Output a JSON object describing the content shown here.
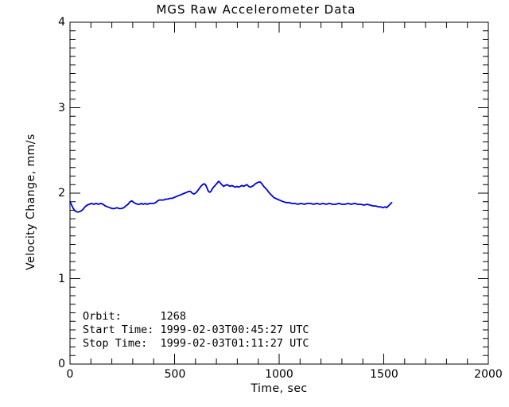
{
  "chart_data": {
    "type": "line",
    "title": "MGS Raw Accelerometer Data",
    "xlabel": "Time, sec",
    "ylabel": "Velocity Change, mm/s",
    "xlim": [
      0,
      2000
    ],
    "ylim": [
      0,
      4
    ],
    "xticks": [
      0,
      500,
      1000,
      1500,
      2000
    ],
    "yticks": [
      0,
      1,
      2,
      3,
      4
    ],
    "xtick_labels": [
      "0",
      "500",
      "1000",
      "1500",
      "2000"
    ],
    "ytick_labels": [
      "0",
      "1",
      "2",
      "3",
      "4"
    ],
    "x_minor_interval": 100,
    "y_minor_interval": 0.1,
    "grid": false,
    "legend": "none",
    "frame_color": "#000000",
    "line_color": "#0000dd",
    "series": [
      {
        "name": "velocity-change",
        "points": [
          [
            0,
            1.9
          ],
          [
            8,
            1.86
          ],
          [
            16,
            1.82
          ],
          [
            25,
            1.79
          ],
          [
            34,
            1.78
          ],
          [
            43,
            1.78
          ],
          [
            52,
            1.79
          ],
          [
            62,
            1.81
          ],
          [
            72,
            1.84
          ],
          [
            82,
            1.86
          ],
          [
            92,
            1.87
          ],
          [
            103,
            1.88
          ],
          [
            114,
            1.87
          ],
          [
            125,
            1.88
          ],
          [
            136,
            1.87
          ],
          [
            147,
            1.88
          ],
          [
            158,
            1.87
          ],
          [
            169,
            1.85
          ],
          [
            180,
            1.84
          ],
          [
            191,
            1.83
          ],
          [
            202,
            1.82
          ],
          [
            213,
            1.82
          ],
          [
            224,
            1.83
          ],
          [
            235,
            1.82
          ],
          [
            246,
            1.82
          ],
          [
            257,
            1.83
          ],
          [
            267,
            1.85
          ],
          [
            277,
            1.87
          ],
          [
            287,
            1.9
          ],
          [
            296,
            1.91
          ],
          [
            305,
            1.89
          ],
          [
            314,
            1.88
          ],
          [
            323,
            1.87
          ],
          [
            332,
            1.87
          ],
          [
            341,
            1.88
          ],
          [
            350,
            1.87
          ],
          [
            360,
            1.88
          ],
          [
            370,
            1.87
          ],
          [
            380,
            1.88
          ],
          [
            390,
            1.88
          ],
          [
            400,
            1.88
          ],
          [
            410,
            1.89
          ],
          [
            419,
            1.91
          ],
          [
            428,
            1.92
          ],
          [
            438,
            1.92
          ],
          [
            448,
            1.92
          ],
          [
            458,
            1.93
          ],
          [
            468,
            1.93
          ],
          [
            478,
            1.94
          ],
          [
            488,
            1.94
          ],
          [
            498,
            1.95
          ],
          [
            508,
            1.96
          ],
          [
            518,
            1.97
          ],
          [
            528,
            1.98
          ],
          [
            538,
            1.99
          ],
          [
            548,
            2.0
          ],
          [
            558,
            2.01
          ],
          [
            567,
            2.02
          ],
          [
            576,
            2.02
          ],
          [
            584,
            2.0
          ],
          [
            592,
            1.99
          ],
          [
            600,
            2.0
          ],
          [
            608,
            2.02
          ],
          [
            617,
            2.05
          ],
          [
            626,
            2.08
          ],
          [
            634,
            2.1
          ],
          [
            641,
            2.11
          ],
          [
            648,
            2.1
          ],
          [
            655,
            2.06
          ],
          [
            662,
            2.02
          ],
          [
            669,
            2.01
          ],
          [
            676,
            2.03
          ],
          [
            683,
            2.06
          ],
          [
            690,
            2.08
          ],
          [
            697,
            2.1
          ],
          [
            704,
            2.12
          ],
          [
            711,
            2.14
          ],
          [
            718,
            2.12
          ],
          [
            726,
            2.1
          ],
          [
            734,
            2.08
          ],
          [
            742,
            2.09
          ],
          [
            750,
            2.1
          ],
          [
            758,
            2.09
          ],
          [
            766,
            2.08
          ],
          [
            774,
            2.09
          ],
          [
            782,
            2.08
          ],
          [
            790,
            2.07
          ],
          [
            798,
            2.08
          ],
          [
            806,
            2.07
          ],
          [
            814,
            2.08
          ],
          [
            822,
            2.09
          ],
          [
            830,
            2.08
          ],
          [
            838,
            2.09
          ],
          [
            846,
            2.1
          ],
          [
            854,
            2.08
          ],
          [
            862,
            2.07
          ],
          [
            870,
            2.08
          ],
          [
            878,
            2.09
          ],
          [
            886,
            2.11
          ],
          [
            894,
            2.12
          ],
          [
            902,
            2.13
          ],
          [
            910,
            2.13
          ],
          [
            918,
            2.11
          ],
          [
            926,
            2.08
          ],
          [
            934,
            2.06
          ],
          [
            942,
            2.04
          ],
          [
            950,
            2.01
          ],
          [
            958,
            1.99
          ],
          [
            966,
            1.97
          ],
          [
            974,
            1.95
          ],
          [
            982,
            1.94
          ],
          [
            991,
            1.93
          ],
          [
            1000,
            1.92
          ],
          [
            1010,
            1.91
          ],
          [
            1021,
            1.9
          ],
          [
            1033,
            1.89
          ],
          [
            1046,
            1.89
          ],
          [
            1060,
            1.88
          ],
          [
            1075,
            1.88
          ],
          [
            1090,
            1.87
          ],
          [
            1105,
            1.88
          ],
          [
            1120,
            1.87
          ],
          [
            1135,
            1.88
          ],
          [
            1150,
            1.88
          ],
          [
            1165,
            1.87
          ],
          [
            1180,
            1.88
          ],
          [
            1195,
            1.87
          ],
          [
            1210,
            1.88
          ],
          [
            1225,
            1.87
          ],
          [
            1240,
            1.88
          ],
          [
            1255,
            1.87
          ],
          [
            1270,
            1.87
          ],
          [
            1285,
            1.88
          ],
          [
            1300,
            1.87
          ],
          [
            1315,
            1.87
          ],
          [
            1330,
            1.88
          ],
          [
            1345,
            1.87
          ],
          [
            1360,
            1.88
          ],
          [
            1375,
            1.87
          ],
          [
            1390,
            1.87
          ],
          [
            1405,
            1.86
          ],
          [
            1420,
            1.87
          ],
          [
            1435,
            1.86
          ],
          [
            1450,
            1.85
          ],
          [
            1462,
            1.85
          ],
          [
            1474,
            1.84
          ],
          [
            1486,
            1.84
          ],
          [
            1496,
            1.83
          ],
          [
            1506,
            1.84
          ],
          [
            1514,
            1.83
          ],
          [
            1522,
            1.85
          ],
          [
            1530,
            1.87
          ],
          [
            1538,
            1.89
          ]
        ]
      }
    ],
    "annotations": [
      "Orbit:      1268",
      "Start Time: 1999-02-03T00:45:27 UTC",
      "Stop Time:  1999-02-03T01:11:27 UTC"
    ]
  }
}
